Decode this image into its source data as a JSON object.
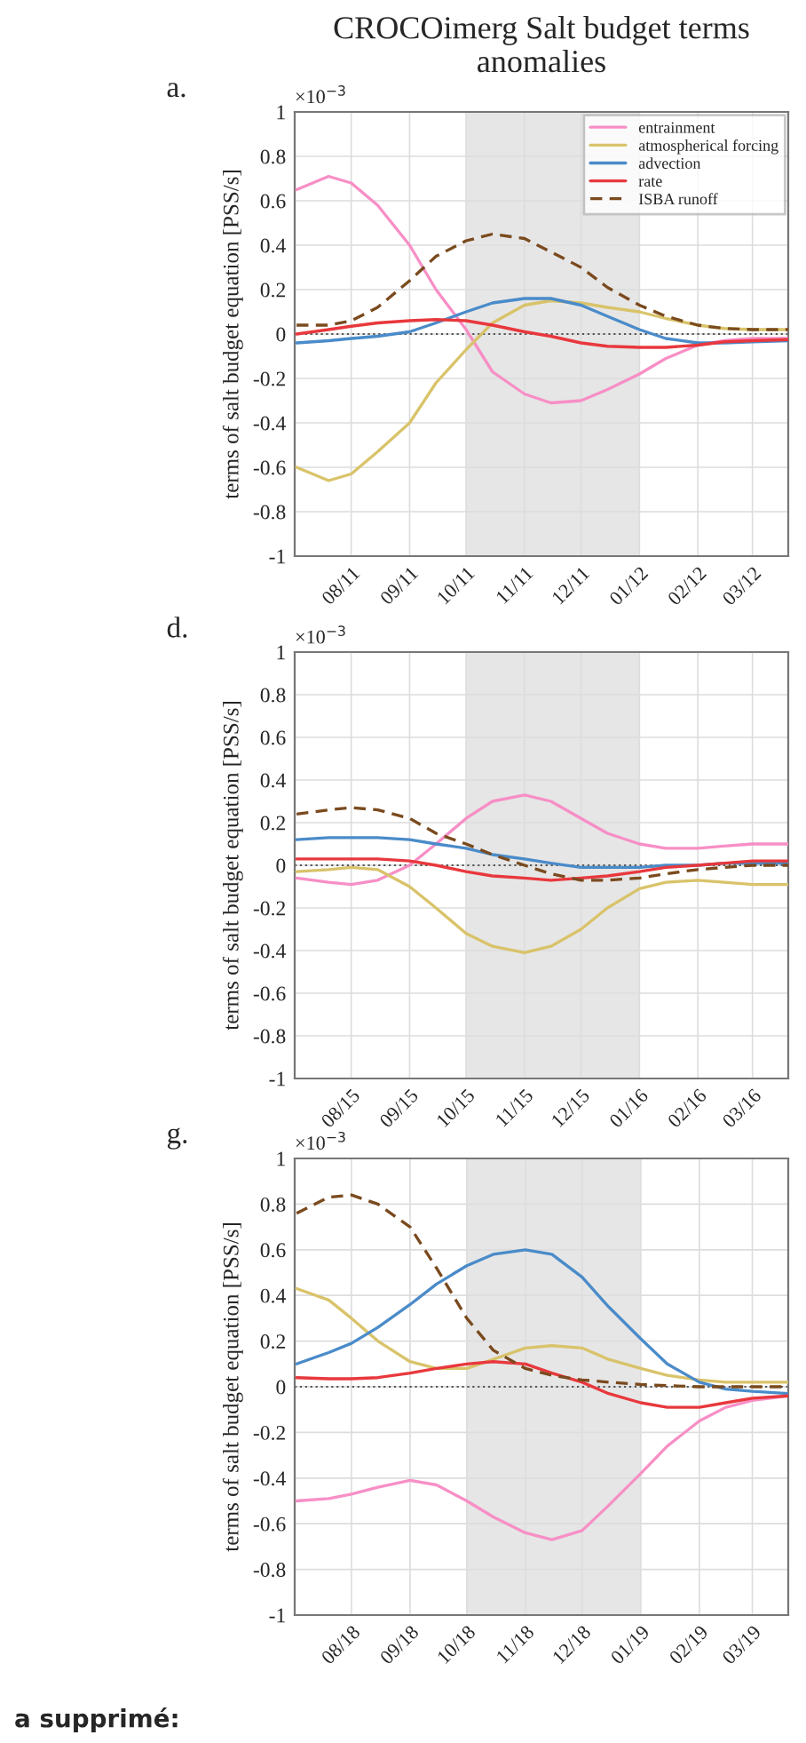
{
  "chart_data": [
    {
      "type": "line",
      "title": "CROCOimerg Salt budget terms anomalies",
      "ylabel": "terms of salt budget equation [PSS/s]",
      "annotations": [
        "a.",
        "×10$^{−3}$"
      ],
      "x": [
        "2011-07-03",
        "2011-07-20",
        "2011-08-01",
        "2011-08-15",
        "2011-09-01",
        "2011-09-15",
        "2011-10-01",
        "2011-10-15",
        "2011-11-01",
        "2011-11-15",
        "2011-12-01",
        "2011-12-15",
        "2012-01-01",
        "2012-01-15",
        "2012-02-01",
        "2012-02-15",
        "2012-03-01",
        "2012-03-20"
      ],
      "series": [
        {
          "name": "entrainment",
          "color": "#f78fc6",
          "values": [
            0.65,
            0.71,
            0.68,
            0.58,
            0.4,
            0.2,
            0.02,
            -0.17,
            -0.27,
            -0.31,
            -0.3,
            -0.25,
            -0.18,
            -0.11,
            -0.05,
            -0.03,
            -0.02,
            -0.02
          ]
        },
        {
          "name": "atmospherical forcing",
          "color": "#d9c36a",
          "values": [
            -0.6,
            -0.66,
            -0.63,
            -0.53,
            -0.4,
            -0.22,
            -0.07,
            0.05,
            0.13,
            0.15,
            0.14,
            0.12,
            0.1,
            0.07,
            0.04,
            0.025,
            0.02,
            0.02
          ]
        },
        {
          "name": "advection",
          "color": "#4a8bc9",
          "values": [
            -0.04,
            -0.03,
            -0.02,
            -0.01,
            0.01,
            0.05,
            0.1,
            0.14,
            0.16,
            0.16,
            0.13,
            0.08,
            0.02,
            -0.02,
            -0.04,
            -0.04,
            -0.035,
            -0.03
          ]
        },
        {
          "name": "rate",
          "color": "#e8383d",
          "values": [
            0.0,
            0.02,
            0.035,
            0.05,
            0.06,
            0.065,
            0.06,
            0.04,
            0.01,
            -0.01,
            -0.04,
            -0.055,
            -0.06,
            -0.06,
            -0.05,
            -0.035,
            -0.03,
            -0.025
          ]
        },
        {
          "name": "ISBA runoff",
          "color": "#7a4a1e",
          "line_style": "dashed",
          "values": [
            0.04,
            0.04,
            0.06,
            0.12,
            0.24,
            0.35,
            0.42,
            0.45,
            0.43,
            0.37,
            0.3,
            0.21,
            0.13,
            0.08,
            0.04,
            0.025,
            0.02,
            0.02
          ]
        }
      ],
      "xlim": [
        "2011-07-02",
        "2012-03-20"
      ],
      "xticks": [
        {
          "value": "2011-08-01",
          "label": "08/11"
        },
        {
          "value": "2011-09-01",
          "label": "09/11"
        },
        {
          "value": "2011-10-01",
          "label": "10/11"
        },
        {
          "value": "2011-11-01",
          "label": "11/11"
        },
        {
          "value": "2011-12-01",
          "label": "12/11"
        },
        {
          "value": "2012-01-01",
          "label": "01/12"
        },
        {
          "value": "2012-02-01",
          "label": "02/12"
        },
        {
          "value": "2012-03-01",
          "label": "03/12"
        }
      ],
      "ylim": [
        -1,
        1
      ],
      "yticks": [
        -1,
        -0.8,
        -0.6,
        -0.4,
        -0.2,
        0,
        0.2,
        0.4,
        0.6,
        0.8,
        1
      ],
      "bands": [
        {
          "axis": "x",
          "from": "2011-10-01",
          "to": "2012-01-01",
          "color": "#e6e6e6"
        }
      ],
      "ref_lines": [
        {
          "axis": "y",
          "value": 0,
          "color": "#555555",
          "line_style": "dotted"
        }
      ],
      "grid": true,
      "legend": "top right"
    },
    {
      "type": "line",
      "ylabel": "terms of salt budget equation [PSS/s]",
      "annotations": [
        "d.",
        "×10$^{−3}$"
      ],
      "x": [
        "2015-07-03",
        "2015-07-20",
        "2015-08-01",
        "2015-08-15",
        "2015-09-01",
        "2015-09-15",
        "2015-10-01",
        "2015-10-15",
        "2015-11-01",
        "2015-11-15",
        "2015-12-01",
        "2015-12-15",
        "2016-01-01",
        "2016-01-15",
        "2016-02-01",
        "2016-02-15",
        "2016-03-01",
        "2016-03-20"
      ],
      "series": [
        {
          "color": "#f78fc6",
          "values": [
            -0.06,
            -0.08,
            -0.09,
            -0.07,
            0.0,
            0.1,
            0.22,
            0.3,
            0.33,
            0.3,
            0.22,
            0.15,
            0.1,
            0.08,
            0.08,
            0.09,
            0.1,
            0.1
          ]
        },
        {
          "color": "#d9c36a",
          "values": [
            -0.03,
            -0.02,
            -0.01,
            -0.02,
            -0.1,
            -0.2,
            -0.32,
            -0.38,
            -0.41,
            -0.38,
            -0.3,
            -0.2,
            -0.11,
            -0.08,
            -0.07,
            -0.08,
            -0.09,
            -0.09
          ]
        },
        {
          "color": "#4a8bc9",
          "values": [
            0.12,
            0.13,
            0.13,
            0.13,
            0.12,
            0.1,
            0.08,
            0.05,
            0.03,
            0.01,
            -0.01,
            -0.01,
            -0.01,
            0.0,
            0.0,
            0.01,
            0.01,
            0.01
          ]
        },
        {
          "color": "#e8383d",
          "values": [
            0.03,
            0.03,
            0.03,
            0.03,
            0.02,
            0.0,
            -0.03,
            -0.05,
            -0.06,
            -0.07,
            -0.06,
            -0.05,
            -0.03,
            -0.01,
            0.0,
            0.01,
            0.02,
            0.02
          ]
        },
        {
          "color": "#7a4a1e",
          "line_style": "dashed",
          "values": [
            0.24,
            0.26,
            0.27,
            0.26,
            0.22,
            0.15,
            0.1,
            0.05,
            0.0,
            -0.04,
            -0.07,
            -0.07,
            -0.06,
            -0.04,
            -0.02,
            -0.01,
            0.0,
            0.0
          ]
        }
      ],
      "xlim": [
        "2015-07-02",
        "2016-03-20"
      ],
      "xticks": [
        {
          "value": "2015-08-01",
          "label": "08/15"
        },
        {
          "value": "2015-09-01",
          "label": "09/15"
        },
        {
          "value": "2015-10-01",
          "label": "10/15"
        },
        {
          "value": "2015-11-01",
          "label": "11/15"
        },
        {
          "value": "2015-12-01",
          "label": "12/15"
        },
        {
          "value": "2016-01-01",
          "label": "01/16"
        },
        {
          "value": "2016-02-01",
          "label": "02/16"
        },
        {
          "value": "2016-03-01",
          "label": "03/16"
        }
      ],
      "ylim": [
        -1,
        1
      ],
      "yticks": [
        -1,
        -0.8,
        -0.6,
        -0.4,
        -0.2,
        0,
        0.2,
        0.4,
        0.6,
        0.8,
        1
      ],
      "bands": [
        {
          "axis": "x",
          "from": "2015-10-01",
          "to": "2016-01-01",
          "color": "#e6e6e6"
        }
      ],
      "ref_lines": [
        {
          "axis": "y",
          "value": 0,
          "color": "#555555",
          "line_style": "dotted"
        }
      ],
      "grid": true
    },
    {
      "type": "line",
      "ylabel": "terms of salt budget equation [PSS/s]",
      "annotations": [
        "g.",
        "×10$^{−3}$",
        "a supprimé:"
      ],
      "x": [
        "2018-07-03",
        "2018-07-20",
        "2018-08-01",
        "2018-08-15",
        "2018-09-01",
        "2018-09-15",
        "2018-10-01",
        "2018-10-15",
        "2018-11-01",
        "2018-11-15",
        "2018-12-01",
        "2018-12-15",
        "2019-01-01",
        "2019-01-15",
        "2019-02-01",
        "2019-02-15",
        "2019-03-01",
        "2019-03-20"
      ],
      "series": [
        {
          "color": "#f78fc6",
          "values": [
            -0.5,
            -0.49,
            -0.47,
            -0.44,
            -0.41,
            -0.43,
            -0.5,
            -0.57,
            -0.64,
            -0.67,
            -0.63,
            -0.52,
            -0.38,
            -0.26,
            -0.15,
            -0.09,
            -0.06,
            -0.04
          ]
        },
        {
          "color": "#d9c36a",
          "values": [
            0.43,
            0.38,
            0.3,
            0.2,
            0.11,
            0.08,
            0.08,
            0.12,
            0.17,
            0.18,
            0.17,
            0.12,
            0.08,
            0.05,
            0.03,
            0.02,
            0.02,
            0.02
          ]
        },
        {
          "color": "#4a8bc9",
          "values": [
            0.1,
            0.15,
            0.19,
            0.26,
            0.36,
            0.45,
            0.53,
            0.58,
            0.6,
            0.58,
            0.48,
            0.35,
            0.21,
            0.1,
            0.02,
            -0.01,
            -0.02,
            -0.03
          ]
        },
        {
          "color": "#e8383d",
          "values": [
            0.04,
            0.035,
            0.035,
            0.04,
            0.06,
            0.08,
            0.1,
            0.11,
            0.1,
            0.06,
            0.02,
            -0.03,
            -0.07,
            -0.09,
            -0.09,
            -0.07,
            -0.05,
            -0.04
          ]
        },
        {
          "color": "#7a4a1e",
          "line_style": "dashed",
          "values": [
            0.76,
            0.83,
            0.84,
            0.8,
            0.7,
            0.52,
            0.3,
            0.16,
            0.08,
            0.05,
            0.03,
            0.02,
            0.01,
            0.005,
            0.0,
            0.0,
            0.0,
            0.0
          ]
        }
      ],
      "xlim": [
        "2018-07-02",
        "2019-03-20"
      ],
      "xticks": [
        {
          "value": "2018-08-01",
          "label": "08/18"
        },
        {
          "value": "2018-09-01",
          "label": "09/18"
        },
        {
          "value": "2018-10-01",
          "label": "10/18"
        },
        {
          "value": "2018-11-01",
          "label": "11/18"
        },
        {
          "value": "2018-12-01",
          "label": "12/18"
        },
        {
          "value": "2019-01-01",
          "label": "01/19"
        },
        {
          "value": "2019-02-01",
          "label": "02/19"
        },
        {
          "value": "2019-03-01",
          "label": "03/19"
        }
      ],
      "ylim": [
        -1,
        1
      ],
      "yticks": [
        -1,
        -0.8,
        -0.6,
        -0.4,
        -0.2,
        0,
        0.2,
        0.4,
        0.6,
        0.8,
        1
      ],
      "bands": [
        {
          "axis": "x",
          "from": "2018-10-01",
          "to": "2019-01-01",
          "color": "#e6e6e6"
        }
      ],
      "ref_lines": [
        {
          "axis": "y",
          "value": 0,
          "color": "#555555",
          "line_style": "dotted"
        }
      ],
      "grid": true
    }
  ]
}
